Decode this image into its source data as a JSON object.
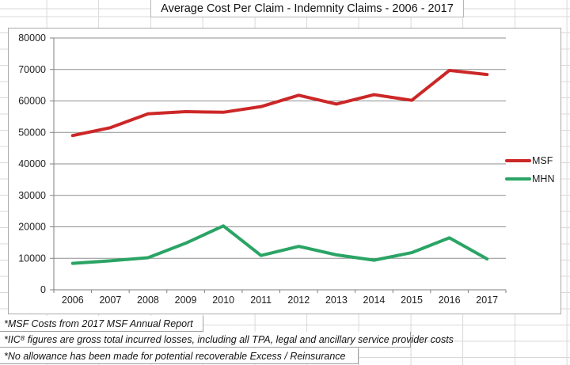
{
  "title_cell": {
    "text": "Average Cost Per Claim - Indemnity Claims - 2006 - 2017"
  },
  "footnotes": [
    {
      "text": "*MSF Costs from 2017 MSF Annual Report"
    },
    {
      "text": "*IIC⁸ figures are gross total incurred losses, including all TPA, legal and ancillary service provider costs"
    },
    {
      "text": "*No allowance has been made for potential recoverable Excess / Reinsurance"
    }
  ],
  "colors": {
    "msf_line": "#cc2727",
    "mhn_line": "#2aa465",
    "gridline": "#8f8f8f",
    "axis": "#7f7f7f",
    "label_text": "#1f1f1f",
    "spreadsheet_grid": "#d9d9d9",
    "cell_border": "#9f9f9f"
  },
  "chart_data": {
    "type": "line",
    "title": "Average Cost Per Claim - Indemnity Claims - 2006 - 2017",
    "categories": [
      "2006",
      "2007",
      "2008",
      "2009",
      "2010",
      "2011",
      "2012",
      "2013",
      "2014",
      "2015",
      "2016",
      "2017"
    ],
    "series": [
      {
        "name": "MSF",
        "color": "#cc2727",
        "values": [
          49000,
          51500,
          55900,
          56600,
          56400,
          58200,
          61800,
          59000,
          62000,
          60200,
          69700,
          68400
        ]
      },
      {
        "name": "MHN",
        "color": "#2aa465",
        "values": [
          8400,
          9200,
          10200,
          14800,
          20300,
          10900,
          13800,
          11100,
          9400,
          11800,
          16500,
          9800
        ]
      }
    ],
    "xlabel": "",
    "ylabel": "",
    "ylim": [
      0,
      80000
    ],
    "ytick_interval": 10000,
    "grid": true,
    "legend_position": "right"
  }
}
